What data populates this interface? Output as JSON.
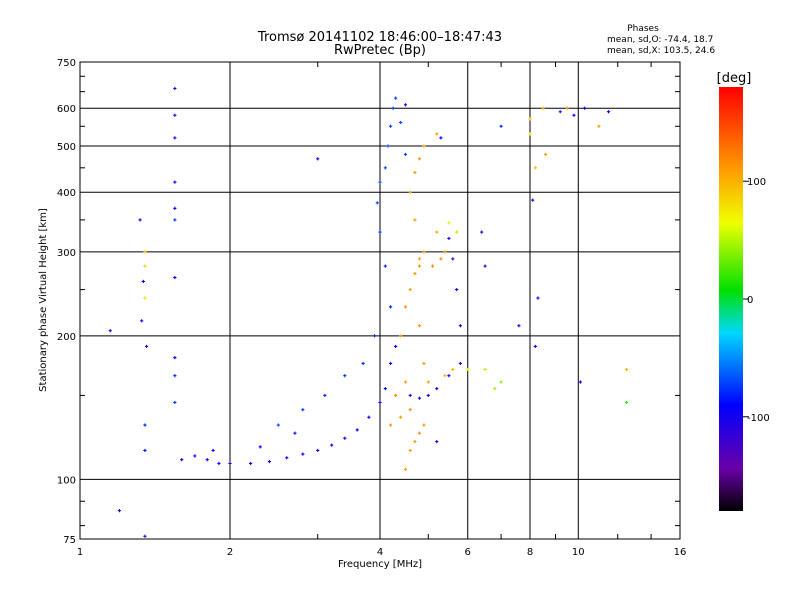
{
  "chart_data": {
    "type": "scatter",
    "title": "Tromsø 20141102 18:46:00–18:47:43",
    "subtitle": "RwPretec (Bp)",
    "stats_header": {
      "title": "Phases",
      "line_o": "mean, sd,O: -74.4, 18.7",
      "line_x": "mean, sd,X: 103.5, 24.6"
    },
    "xlabel": "Frequency [MHz]",
    "ylabel": "Stationary phase Virtual Height [km]",
    "x_scale": "log",
    "y_scale": "log",
    "xlim": [
      1,
      16
    ],
    "ylim": [
      75,
      750
    ],
    "grid": true,
    "x_ticks": [
      1,
      2,
      4,
      6,
      8,
      10,
      16
    ],
    "x_tick_labels": [
      "1",
      "2",
      "4",
      "6",
      "8",
      "10",
      "16"
    ],
    "y_ticks": [
      75,
      100,
      200,
      300,
      400,
      500,
      600,
      750
    ],
    "y_tick_labels": [
      "75",
      "100",
      "200",
      "300",
      "400",
      "500",
      "600",
      "750"
    ],
    "colorbar": {
      "label": "[deg]",
      "range": [
        -180,
        180
      ],
      "ticks": [
        100,
        0,
        -100
      ],
      "tick_labels": [
        "100",
        "0",
        "-100"
      ]
    },
    "series": [
      {
        "points": [
          [
            1.6,
            110,
            -90
          ],
          [
            1.7,
            112,
            -100
          ],
          [
            1.8,
            110,
            -95
          ],
          [
            1.9,
            108,
            -92
          ],
          [
            2.0,
            108,
            -98
          ],
          [
            2.2,
            108,
            -100
          ],
          [
            2.4,
            109,
            -100
          ],
          [
            2.6,
            111,
            -100
          ],
          [
            2.8,
            113,
            -95
          ],
          [
            3.0,
            115,
            -100
          ],
          [
            3.2,
            118,
            -95
          ],
          [
            3.4,
            122,
            -95
          ],
          [
            3.6,
            127,
            -90
          ],
          [
            3.8,
            135,
            -90
          ],
          [
            4.0,
            145,
            -95
          ],
          [
            4.1,
            155,
            -90
          ],
          [
            4.2,
            175,
            -85
          ],
          [
            4.3,
            190,
            -88
          ],
          [
            4.2,
            230,
            -80
          ],
          [
            4.1,
            280,
            -80
          ],
          [
            4.0,
            330,
            -75
          ],
          [
            3.95,
            380,
            -70
          ],
          [
            4.0,
            420,
            -70
          ],
          [
            4.1,
            450,
            -70
          ],
          [
            4.15,
            500,
            -72
          ],
          [
            4.2,
            550,
            -72
          ],
          [
            4.25,
            600,
            -70
          ],
          [
            4.3,
            630,
            -72
          ],
          [
            4.4,
            560,
            -68
          ],
          [
            4.5,
            480,
            -70
          ],
          [
            2.5,
            130,
            -70
          ],
          [
            2.8,
            140,
            -75
          ],
          [
            3.1,
            150,
            -80
          ],
          [
            3.4,
            165,
            -78
          ],
          [
            3.7,
            175,
            -80
          ],
          [
            3.9,
            200,
            -80
          ],
          [
            1.85,
            115,
            -95
          ],
          [
            2.3,
            117,
            -90
          ],
          [
            2.7,
            125,
            -85
          ],
          [
            4.6,
            150,
            -105
          ],
          [
            4.8,
            148,
            -100
          ],
          [
            5.0,
            150,
            -100
          ],
          [
            5.2,
            155,
            -105
          ],
          [
            5.5,
            165,
            -100
          ],
          [
            5.8,
            175,
            -105
          ],
          [
            5.8,
            210,
            -110
          ],
          [
            5.7,
            250,
            -105
          ],
          [
            5.6,
            290,
            -110
          ],
          [
            5.5,
            320,
            -108
          ],
          [
            6.4,
            330,
            -110
          ],
          [
            6.5,
            280,
            -110
          ],
          [
            1.35,
            130,
            -80
          ],
          [
            1.35,
            115,
            -85
          ],
          [
            1.55,
            660,
            -110
          ],
          [
            1.55,
            580,
            -110
          ],
          [
            1.55,
            520,
            -110
          ],
          [
            1.55,
            420,
            -100
          ],
          [
            1.55,
            370,
            -95
          ],
          [
            1.55,
            350,
            -75
          ],
          [
            1.55,
            265,
            -90
          ],
          [
            1.55,
            180,
            -90
          ],
          [
            1.55,
            165,
            -80
          ],
          [
            1.55,
            145,
            -75
          ],
          [
            1.32,
            350,
            -110
          ],
          [
            1.34,
            260,
            -90
          ],
          [
            1.33,
            215,
            -100
          ],
          [
            1.36,
            190,
            -110
          ],
          [
            1.15,
            205,
            -110
          ],
          [
            1.2,
            86,
            -110
          ],
          [
            1.35,
            76,
            -120
          ],
          [
            3.0,
            470,
            -110
          ],
          [
            8.1,
            385,
            -100
          ],
          [
            8.3,
            240,
            -100
          ],
          [
            9.2,
            590,
            -80
          ],
          [
            10.3,
            600,
            -90
          ],
          [
            11.5,
            590,
            -90
          ],
          [
            8.2,
            190,
            -100
          ],
          [
            10.1,
            160,
            -100
          ],
          [
            7.6,
            210,
            -110
          ],
          [
            7.0,
            550,
            -80
          ],
          [
            9.8,
            580,
            -100
          ],
          [
            4.5,
            610,
            -110
          ],
          [
            5.3,
            520,
            -90
          ],
          [
            5.2,
            120,
            -85
          ]
        ],
        "marker": "plus"
      },
      {
        "points": [
          [
            4.5,
            105,
            110
          ],
          [
            4.6,
            115,
            110
          ],
          [
            4.7,
            120,
            112
          ],
          [
            4.8,
            125,
            115
          ],
          [
            4.9,
            130,
            112
          ],
          [
            4.6,
            140,
            115
          ],
          [
            4.5,
            160,
            112
          ],
          [
            4.4,
            200,
            110
          ],
          [
            4.5,
            230,
            115
          ],
          [
            4.6,
            250,
            112
          ],
          [
            4.7,
            270,
            115
          ],
          [
            4.8,
            290,
            110
          ],
          [
            4.9,
            300,
            112
          ],
          [
            4.7,
            350,
            110
          ],
          [
            4.6,
            400,
            108
          ],
          [
            4.7,
            440,
            110
          ],
          [
            4.8,
            470,
            112
          ],
          [
            4.9,
            500,
            110
          ],
          [
            4.8,
            280,
            115
          ],
          [
            5.1,
            280,
            120
          ],
          [
            5.3,
            290,
            118
          ],
          [
            5.4,
            300,
            115
          ],
          [
            5.2,
            330,
            100
          ],
          [
            5.6,
            170,
            100
          ],
          [
            5.4,
            165,
            95
          ],
          [
            4.9,
            175,
            110
          ],
          [
            5.0,
            160,
            108
          ],
          [
            4.4,
            135,
            112
          ],
          [
            4.2,
            130,
            115
          ],
          [
            6.0,
            170,
            60
          ],
          [
            6.5,
            170,
            50
          ],
          [
            6.8,
            155,
            45
          ],
          [
            7.0,
            160,
            40
          ],
          [
            5.7,
            330,
            50
          ],
          [
            5.5,
            345,
            60
          ],
          [
            5.2,
            530,
            110
          ],
          [
            1.35,
            280,
            85
          ],
          [
            1.35,
            300,
            88
          ],
          [
            1.35,
            240,
            80
          ],
          [
            8.0,
            570,
            95
          ],
          [
            8.5,
            600,
            100
          ],
          [
            8.6,
            480,
            110
          ],
          [
            11.0,
            550,
            110
          ],
          [
            12.5,
            170,
            100
          ],
          [
            12.5,
            145,
            20
          ],
          [
            8.0,
            530,
            80
          ],
          [
            8.2,
            450,
            95
          ],
          [
            9.5,
            600,
            110
          ],
          [
            4.3,
            150,
            120
          ],
          [
            4.8,
            210,
            115
          ]
        ],
        "marker": "plus"
      }
    ]
  }
}
